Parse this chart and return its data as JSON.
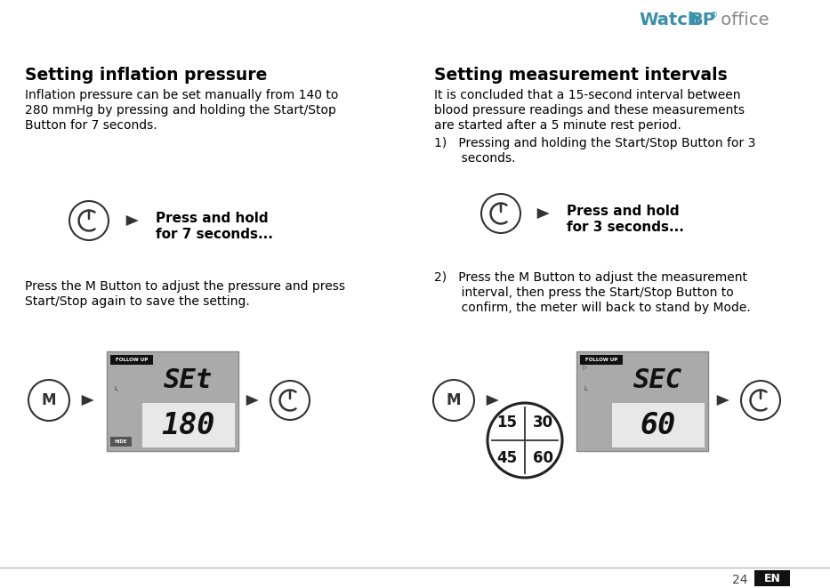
{
  "bg_color": "#ffffff",
  "title_color": "#000000",
  "body_color": "#000000",
  "watchbp_color": "#3a8faa",
  "office_color": "#888888",
  "display_bg": "#a8a8a8",
  "display_inner_bg": "#d8d8d8",
  "page_num": "24",
  "left_title": "Setting inflation pressure",
  "left_body1_lines": [
    "Inflation pressure can be set manually from 140 to",
    "280 mmHg by pressing and holding the Start/Stop",
    "Button for 7 seconds."
  ],
  "left_label_line1": "Press and hold",
  "left_label_line2": "for 7 seconds...",
  "left_body2_lines": [
    "Press the M Button to adjust the pressure and press",
    "Start/Stop again to save the setting."
  ],
  "right_title": "Setting measurement intervals",
  "right_body1_lines": [
    "It is concluded that a 15-second interval between",
    "blood pressure readings and these measurements",
    "are started after a 5 minute rest period."
  ],
  "right_step1_lines": [
    "1)   Pressing and holding the Start/Stop Button for 3",
    "       seconds."
  ],
  "right_label_line1": "Press and hold",
  "right_label_line2": "for 3 seconds...",
  "right_step2_lines": [
    "2)   Press the M Button to adjust the measurement",
    "       interval, then press the Start/Stop Button to",
    "       confirm, the meter will back to stand by Mode."
  ],
  "interval_values": [
    "15",
    "30",
    "45",
    "60"
  ],
  "display_top_left": "SEt",
  "display_bottom_left": "180",
  "display_top_right": "SEC",
  "display_bottom_right": "60",
  "follow_up_text": "FOLLOW UP",
  "hide_text": "HIDE"
}
